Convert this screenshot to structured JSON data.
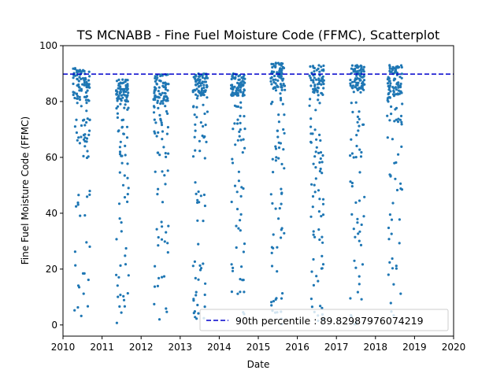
{
  "chart_data": {
    "type": "scatter",
    "title": "TS MCNABB - Fine Fuel Moisture Code (FFMC), Scatterplot",
    "xlabel": "Date",
    "ylabel": "Fine Fuel Moisture Code (FFMC)",
    "xlim": [
      2010,
      2020
    ],
    "ylim": [
      -4,
      100
    ],
    "x_ticks": [
      "2010",
      "2011",
      "2012",
      "2013",
      "2014",
      "2015",
      "2016",
      "2017",
      "2018",
      "2019",
      "2020"
    ],
    "y_ticks": [
      0,
      20,
      40,
      60,
      80,
      100
    ],
    "grid": false,
    "legend_position": "lower-right",
    "reference_line": {
      "label": "90th percentile : 89.82987976074219",
      "value": 89.82987976074219,
      "x_range": [
        2010,
        2020
      ],
      "color": "#0000cc",
      "style": "dashed"
    },
    "series": [
      {
        "color": "#1f77b4",
        "seasons": [
          {
            "year": 2010,
            "start": 2010.26,
            "end": 2010.69,
            "core_low": 80,
            "core_high": 92
          },
          {
            "year": 2011,
            "start": 2011.36,
            "end": 2011.68,
            "core_low": 80,
            "core_high": 88
          },
          {
            "year": 2012,
            "start": 2012.32,
            "end": 2012.71,
            "core_low": 80,
            "core_high": 90
          },
          {
            "year": 2013,
            "start": 2013.33,
            "end": 2013.7,
            "core_low": 82,
            "core_high": 90
          },
          {
            "year": 2014,
            "start": 2014.3,
            "end": 2014.66,
            "core_low": 82,
            "core_high": 90
          },
          {
            "year": 2015,
            "start": 2015.32,
            "end": 2015.68,
            "core_low": 84,
            "core_high": 94
          },
          {
            "year": 2016,
            "start": 2016.31,
            "end": 2016.68,
            "core_low": 82,
            "core_high": 93
          },
          {
            "year": 2017,
            "start": 2017.35,
            "end": 2017.72,
            "core_low": 84,
            "core_high": 93
          },
          {
            "year": 2018,
            "start": 2018.3,
            "end": 2018.69,
            "core_low": 82,
            "core_high": 93
          }
        ]
      }
    ]
  }
}
